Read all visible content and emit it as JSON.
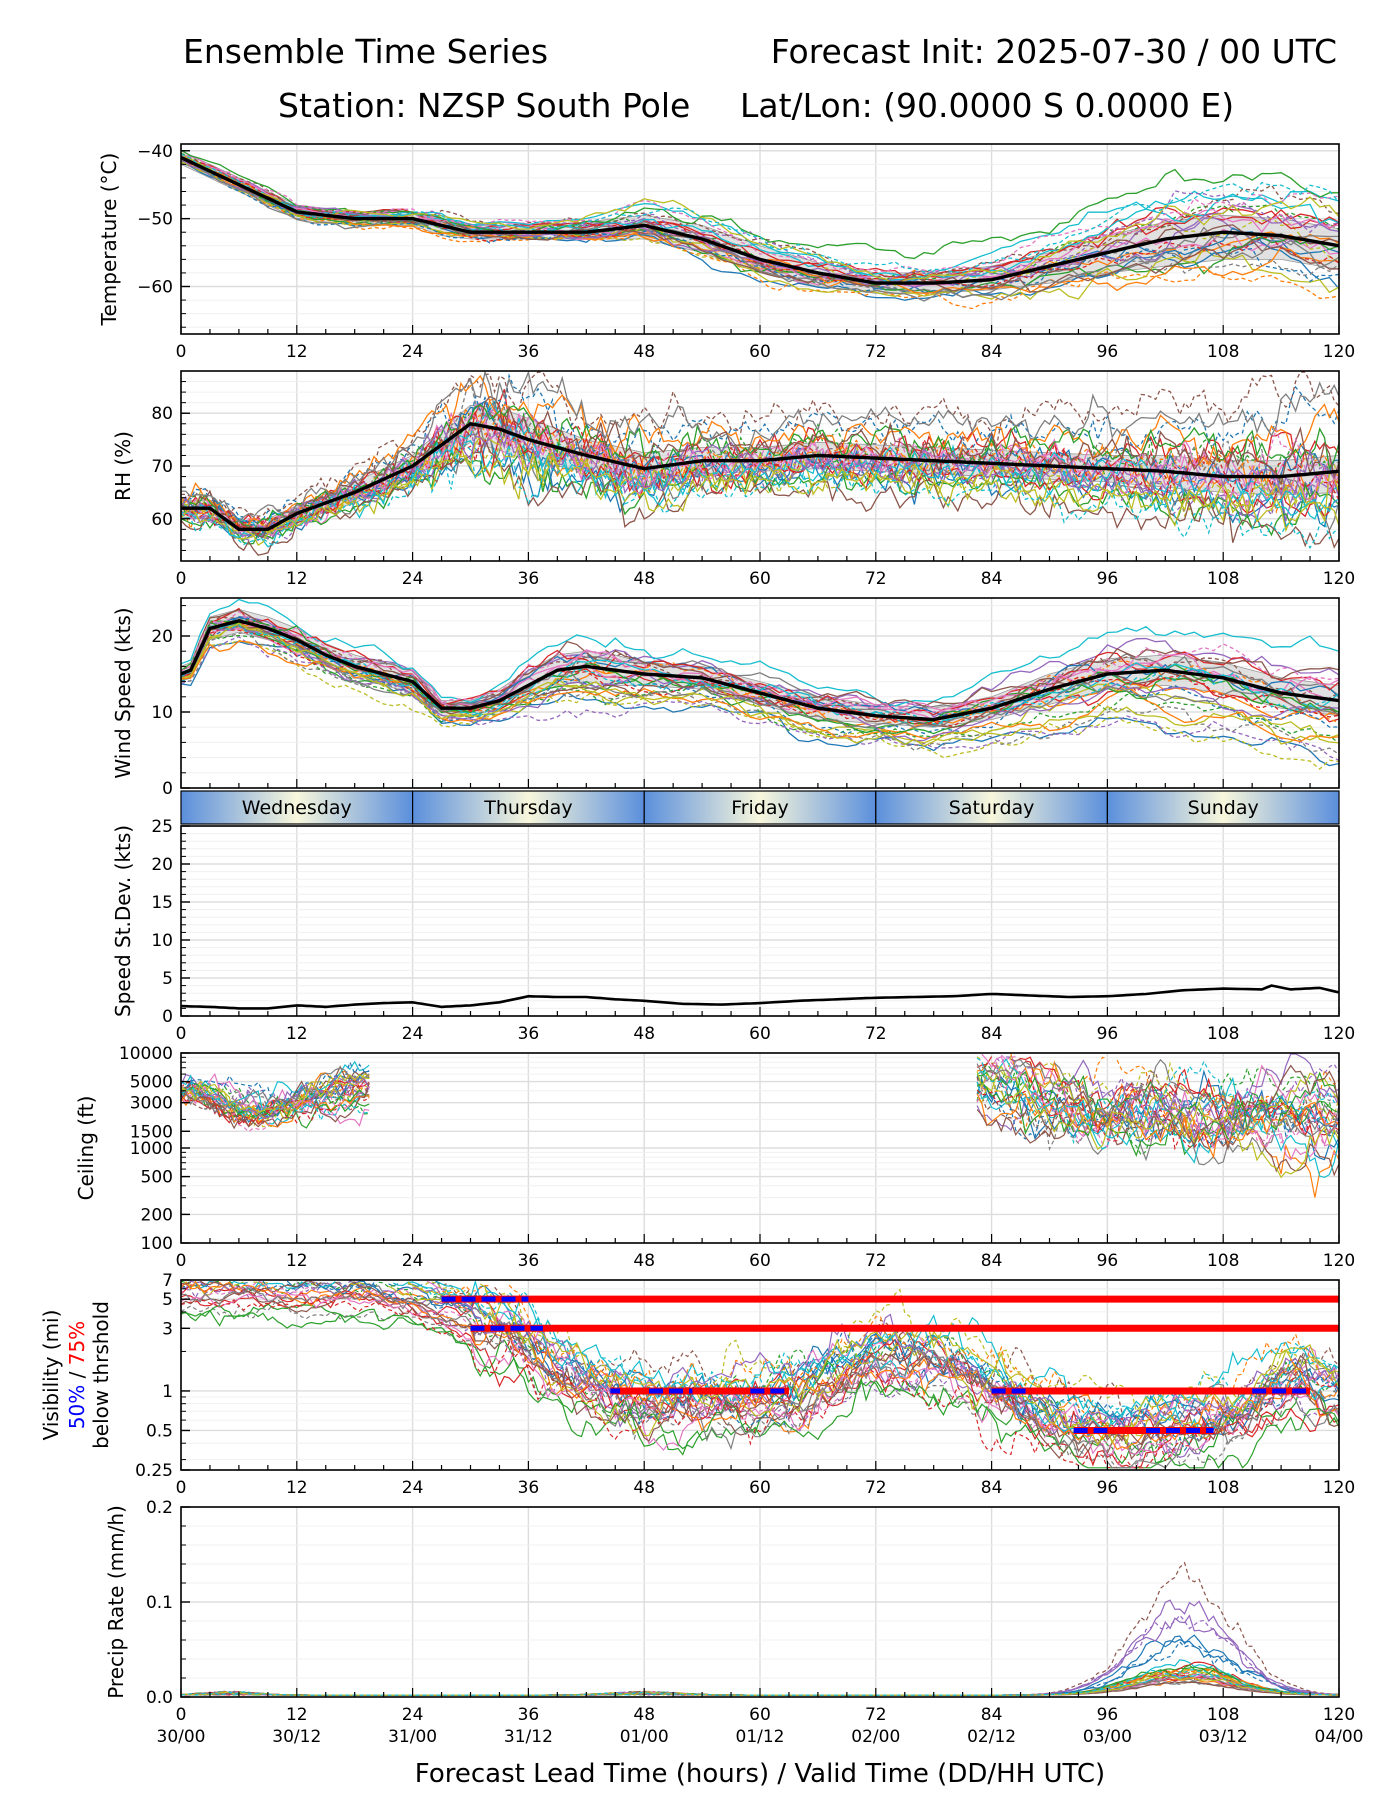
{
  "header": {
    "title_left": "Ensemble Time Series",
    "title_right": "Forecast Init: 2025-07-30 / 00 UTC",
    "station": "Station: NZSP South Pole",
    "latlon": "Lat/Lon: (90.0000 S 0.0000 E)"
  },
  "x_axis": {
    "label": "Forecast Lead Time (hours) / Valid Time (DD/HH UTC)",
    "range": [
      0,
      120
    ],
    "lead_ticks": [
      "0",
      "12",
      "24",
      "36",
      "48",
      "60",
      "72",
      "84",
      "96",
      "108",
      "120"
    ],
    "valid_ticks": [
      "30/00",
      "30/12",
      "31/00",
      "31/12",
      "01/00",
      "01/12",
      "02/00",
      "02/12",
      "03/00",
      "03/12",
      "04/00"
    ]
  },
  "day_bar": [
    "Wednesday",
    "Thursday",
    "Friday",
    "Saturday",
    "Sunday"
  ],
  "colors": {
    "ensemble": [
      "#1f77b4",
      "#ff7f0e",
      "#2ca02c",
      "#d62728",
      "#9467bd",
      "#8c564b",
      "#e377c2",
      "#7f7f7f",
      "#bcbd22",
      "#17becf"
    ],
    "mean": "#000000",
    "spread": "#c8c8c8",
    "vis_50": "#0000ff",
    "vis_75": "#ff0000",
    "day_blue": "#5b8fdc",
    "day_cream": "#f8f7dc"
  },
  "chart_data": [
    {
      "id": "temperature",
      "type": "line",
      "ylabel": "Temperature (°C)",
      "ylim": [
        -67,
        -39
      ],
      "yticks": [
        -60,
        -50,
        -40
      ],
      "ytick_labels": [
        "−60",
        "−50",
        "−40"
      ],
      "grid": true,
      "ensemble_members": 30,
      "x": [
        0,
        6,
        12,
        18,
        24,
        27,
        30,
        36,
        42,
        48,
        54,
        60,
        66,
        72,
        78,
        84,
        90,
        96,
        102,
        108,
        114,
        120
      ],
      "series": [
        {
          "values": [
            -41,
            -45,
            -49,
            -50,
            -50,
            -51,
            -52,
            -52,
            -52,
            -51,
            -53,
            -56,
            -58,
            -59.5,
            -59.5,
            -59,
            -57,
            -55,
            -53,
            -52,
            -52.5,
            -54
          ]
        }
      ],
      "spread_lower": [
        -42,
        -46,
        -50,
        -51,
        -51,
        -52.5,
        -53,
        -53,
        -53,
        -53,
        -55,
        -58,
        -60,
        -61,
        -61,
        -60.5,
        -59.5,
        -58,
        -57,
        -56,
        -56,
        -57.5
      ],
      "spread_upper": [
        -40,
        -44,
        -48,
        -49,
        -49,
        -50,
        -51,
        -51,
        -50.5,
        -49.5,
        -51,
        -54,
        -56.5,
        -58,
        -58,
        -57,
        -55,
        -52.5,
        -50.5,
        -49.5,
        -50,
        -51.5
      ]
    },
    {
      "id": "rh",
      "type": "line",
      "ylabel": "RH (%)",
      "ylim": [
        52,
        88
      ],
      "yticks": [
        60,
        70,
        80
      ],
      "ytick_labels": [
        "60",
        "70",
        "80"
      ],
      "grid": true,
      "ensemble_members": 30,
      "x": [
        0,
        3,
        6,
        9,
        12,
        18,
        24,
        27,
        30,
        33,
        36,
        42,
        48,
        54,
        60,
        66,
        72,
        78,
        84,
        90,
        96,
        102,
        108,
        114,
        120
      ],
      "series": [
        {
          "values": [
            62,
            62,
            58,
            58,
            61,
            65,
            70,
            74,
            78,
            77,
            75,
            72,
            69.5,
            71,
            71,
            72,
            71.5,
            71,
            70.5,
            70,
            69.5,
            69,
            68,
            68,
            69
          ]
        }
      ],
      "spread_lower": [
        60,
        60,
        57,
        57,
        59.5,
        63,
        68,
        71,
        74.5,
        73,
        71,
        69,
        66,
        68.5,
        69,
        69.5,
        69,
        68.5,
        68,
        67.5,
        67,
        66,
        65,
        64.5,
        65
      ],
      "spread_upper": [
        63.5,
        63.5,
        59.5,
        60,
        62.5,
        67,
        72,
        77,
        81.5,
        81,
        79,
        75,
        72.5,
        73.5,
        73.5,
        74.5,
        74,
        73.5,
        73,
        72.5,
        72,
        72,
        71,
        71,
        72
      ]
    },
    {
      "id": "wind_speed",
      "type": "line",
      "ylabel": "Wind Speed (kts)",
      "ylim": [
        0,
        25
      ],
      "yticks": [
        0,
        10,
        20
      ],
      "ytick_labels": [
        "0",
        "10",
        "20"
      ],
      "grid": true,
      "ensemble_members": 30,
      "x": [
        0,
        1,
        3,
        6,
        9,
        12,
        15,
        18,
        21,
        24,
        27,
        30,
        33,
        36,
        39,
        42,
        45,
        48,
        54,
        60,
        66,
        72,
        78,
        84,
        90,
        96,
        102,
        108,
        114,
        120
      ],
      "series": [
        {
          "values": [
            15,
            15.5,
            21,
            22,
            21,
            19.5,
            17.5,
            16,
            15,
            14,
            10.5,
            10.5,
            11.5,
            13.5,
            15.5,
            16,
            15.5,
            15,
            14.5,
            12.5,
            10.5,
            9.5,
            9,
            10.5,
            13,
            15,
            15.5,
            14.5,
            12.5,
            11.5
          ]
        }
      ],
      "spread_lower": [
        14,
        14.5,
        19.5,
        20.5,
        19.5,
        18,
        16,
        14.5,
        13.5,
        12.5,
        9.5,
        9.5,
        10.5,
        12,
        13.5,
        14,
        13.5,
        13.5,
        13,
        11,
        9,
        8.5,
        8,
        9,
        11,
        13,
        13.5,
        12.5,
        10.5,
        9.5
      ],
      "spread_upper": [
        16,
        16.5,
        22.5,
        23.5,
        22.5,
        21,
        19,
        17.5,
        16.5,
        15.5,
        11.5,
        11.5,
        13,
        15.5,
        17.5,
        18,
        17.5,
        16.5,
        16,
        14,
        12,
        11,
        10.5,
        12,
        15,
        17,
        17.5,
        16.5,
        14.5,
        13.5
      ]
    },
    {
      "id": "speed_stdev",
      "type": "line",
      "ylabel": "Speed St.Dev. (kts)",
      "ylim": [
        0,
        25
      ],
      "yticks": [
        0,
        5,
        10,
        15,
        20,
        25
      ],
      "ytick_labels": [
        "0",
        "5",
        "10",
        "15",
        "20",
        "25"
      ],
      "grid": true,
      "x": [
        0,
        3,
        6,
        9,
        12,
        15,
        18,
        21,
        24,
        27,
        30,
        33,
        36,
        39,
        42,
        45,
        48,
        52,
        56,
        60,
        64,
        68,
        72,
        76,
        80,
        84,
        88,
        92,
        96,
        100,
        104,
        108,
        112,
        113,
        115,
        118,
        120
      ],
      "series": [
        {
          "values": [
            1.3,
            1.2,
            1,
            1,
            1.4,
            1.2,
            1.5,
            1.7,
            1.8,
            1.2,
            1.4,
            1.8,
            2.6,
            2.5,
            2.5,
            2.2,
            2,
            1.6,
            1.5,
            1.7,
            2,
            2.2,
            2.4,
            2.5,
            2.6,
            2.9,
            2.7,
            2.5,
            2.6,
            2.9,
            3.4,
            3.6,
            3.5,
            4,
            3.5,
            3.7,
            3.1
          ]
        }
      ]
    },
    {
      "id": "ceiling",
      "type": "line",
      "ylabel": "Ceiling (ft)",
      "yscale": "log",
      "ylim": [
        100,
        10000
      ],
      "yticks": [
        100,
        200,
        500,
        1000,
        1500,
        3000,
        5000,
        10000
      ],
      "ytick_labels": [
        "100",
        "200",
        "500",
        "1000",
        "1500",
        "3000",
        "5000",
        "10000"
      ],
      "grid": true,
      "ensemble_members": 30
    },
    {
      "id": "visibility",
      "type": "line",
      "ylabel": "Visibility (mi)",
      "ylabel_50": "50%",
      "ylabel_sep": " / ",
      "ylabel_75": "75%",
      "ylabel_tail": "below thrshold",
      "yscale": "log",
      "ylim": [
        0.25,
        7
      ],
      "yticks": [
        0.25,
        0.5,
        1,
        3,
        5,
        7
      ],
      "ytick_labels": [
        "0.25",
        "0.5",
        "1",
        "3",
        "5",
        "7"
      ],
      "grid": true,
      "ensemble_members": 30,
      "threshold_bars_75": [
        {
          "threshold": 5,
          "x_start": 27,
          "x_end": 120
        },
        {
          "threshold": 3,
          "x_start": 30,
          "x_end": 120
        },
        {
          "threshold": 1,
          "x_start": 44.5,
          "x_end": 63
        },
        {
          "threshold": 1,
          "x_start": 84,
          "x_end": 117
        },
        {
          "threshold": 0.5,
          "x_start": 92.5,
          "x_end": 107
        }
      ],
      "threshold_bars_50": [
        {
          "threshold": 5,
          "x_start": 27,
          "x_end": 36
        },
        {
          "threshold": 3,
          "x_start": 30,
          "x_end": 37.5
        },
        {
          "threshold": 1,
          "x_start": 44.5,
          "x_end": 45.5
        },
        {
          "threshold": 1,
          "x_start": 48.5,
          "x_end": 53
        },
        {
          "threshold": 1,
          "x_start": 59,
          "x_end": 63
        },
        {
          "threshold": 1,
          "x_start": 84,
          "x_end": 88
        },
        {
          "threshold": 1,
          "x_start": 111,
          "x_end": 117
        },
        {
          "threshold": 0.5,
          "x_start": 92.5,
          "x_end": 96
        },
        {
          "threshold": 0.5,
          "x_start": 100,
          "x_end": 107
        }
      ]
    },
    {
      "id": "precip_rate",
      "type": "line",
      "ylabel": "Precip Rate (mm/h)",
      "ylim": [
        0,
        0.2
      ],
      "yticks": [
        0,
        0.1,
        0.2
      ],
      "ytick_labels": [
        "0.0",
        "0.1",
        "0.2"
      ],
      "grid": true,
      "ensemble_members": 30
    }
  ]
}
